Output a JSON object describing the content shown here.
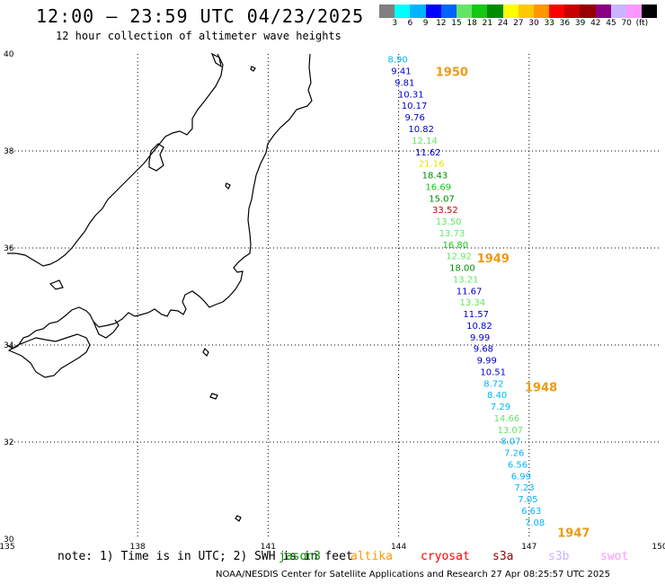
{
  "header": {
    "title": "12:00 – 23:59 UTC 04/23/2025",
    "subtitle": "12 hour collection of altimeter wave heights"
  },
  "legend": {
    "unit": "(ft)",
    "colors": [
      "#808080",
      "#00ffff",
      "#00b4ff",
      "#0000ff",
      "#0064ff",
      "#64e664",
      "#14c814",
      "#008c00",
      "#ffff00",
      "#ffc800",
      "#ff9600",
      "#ff0000",
      "#c80000",
      "#960000",
      "#8b0082",
      "#c8b4ff",
      "#ff96ff",
      "#000000"
    ],
    "labels": [
      "3",
      "6",
      "9",
      "12",
      "15",
      "18",
      "21",
      "24",
      "27",
      "30",
      "33",
      "36",
      "39",
      "42",
      "45",
      "70"
    ]
  },
  "axes": {
    "lat_labels": [
      "40",
      "38",
      "36",
      "34",
      "32",
      "30"
    ],
    "lon_labels": [
      "135",
      "138",
      "141",
      "144",
      "147",
      "150"
    ],
    "lat_range": [
      30,
      40
    ],
    "lon_range": [
      135,
      150
    ]
  },
  "passes": [
    "1950",
    "1949",
    "1948",
    "1947"
  ],
  "observations": [
    {
      "v": "8.90",
      "c": "#00b4ff"
    },
    {
      "v": "9.41",
      "c": "#0000cc"
    },
    {
      "v": "9.81",
      "c": "#0000cc"
    },
    {
      "v": "10.31",
      "c": "#0000cc"
    },
    {
      "v": "10.17",
      "c": "#0000cc"
    },
    {
      "v": "9.76",
      "c": "#0000cc"
    },
    {
      "v": "10.82",
      "c": "#0000cc"
    },
    {
      "v": "12.14",
      "c": "#64e664"
    },
    {
      "v": "11.62",
      "c": "#0000cc"
    },
    {
      "v": "21.16",
      "c": "#e6e600"
    },
    {
      "v": "18.43",
      "c": "#008c00"
    },
    {
      "v": "16.69",
      "c": "#14c814"
    },
    {
      "v": "15.07",
      "c": "#008c00"
    },
    {
      "v": "33.52",
      "c": "#c80000"
    },
    {
      "v": "13.50",
      "c": "#64e664"
    },
    {
      "v": "13.73",
      "c": "#64e664"
    },
    {
      "v": "16.80",
      "c": "#14c814"
    },
    {
      "v": "12.92",
      "c": "#64e664"
    },
    {
      "v": "18.00",
      "c": "#008c00"
    },
    {
      "v": "13.21",
      "c": "#64e664"
    },
    {
      "v": "11.67",
      "c": "#0000cc"
    },
    {
      "v": "13.34",
      "c": "#64e664"
    },
    {
      "v": "11.57",
      "c": "#0000cc"
    },
    {
      "v": "10.82",
      "c": "#0000cc"
    },
    {
      "v": "9.99",
      "c": "#0000cc"
    },
    {
      "v": "9.68",
      "c": "#0000cc"
    },
    {
      "v": "9.99",
      "c": "#0000cc"
    },
    {
      "v": "10.51",
      "c": "#0000cc"
    },
    {
      "v": "8.72",
      "c": "#00b4ff"
    },
    {
      "v": "8.40",
      "c": "#00b4ff"
    },
    {
      "v": "7.29",
      "c": "#00b4ff"
    },
    {
      "v": "14.66",
      "c": "#64e664"
    },
    {
      "v": "13.07",
      "c": "#64e664"
    },
    {
      "v": "8.07",
      "c": "#00b4ff"
    },
    {
      "v": "7.26",
      "c": "#00b4ff"
    },
    {
      "v": "6.56",
      "c": "#00b4ff"
    },
    {
      "v": "6.99",
      "c": "#00b4ff"
    },
    {
      "v": "7.23",
      "c": "#00b4ff"
    },
    {
      "v": "7.05",
      "c": "#00b4ff"
    },
    {
      "v": "6.63",
      "c": "#00b4ff"
    },
    {
      "v": "7.08",
      "c": "#00b4ff"
    }
  ],
  "footer": {
    "note": "note: 1) Time is in UTC; 2) SWH is in feet",
    "satellites": [
      {
        "name": "jason3",
        "color": "#008c00"
      },
      {
        "name": "altika",
        "color": "#ff9600"
      },
      {
        "name": "cryosat",
        "color": "#ff0000"
      },
      {
        "name": "s3a",
        "color": "#960000"
      },
      {
        "name": "s3b",
        "color": "#c8b4ff"
      },
      {
        "name": "swot",
        "color": "#ff96ff"
      }
    ],
    "credit": "NOAA/NESDIS Center for Satellite Applications and Research    27 Apr 08:25:57 UTC 2025"
  }
}
